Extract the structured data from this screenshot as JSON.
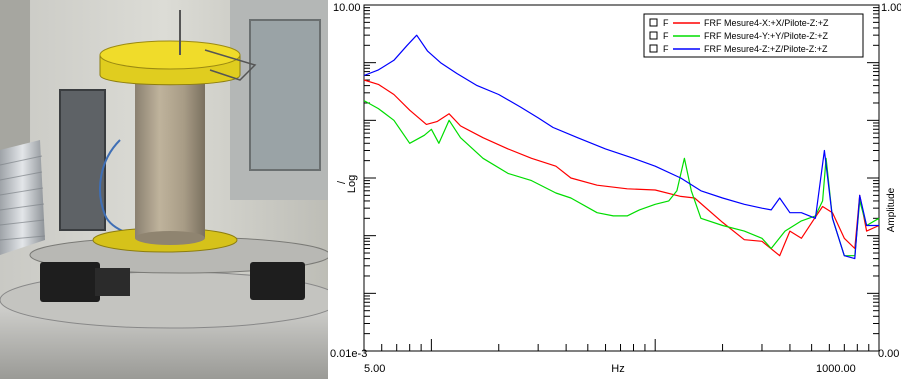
{
  "photo": {
    "scene": "yellow-capped cylindrical specimen mounted on aluminium shaker table"
  },
  "chart_data": {
    "type": "line",
    "title": "",
    "xlabel": "Hz",
    "ylabel": "Log",
    "ylabel_prefix": "/",
    "ylabel_right": "Amplitude",
    "x_scale": "log",
    "y_scale": "log",
    "xlim": [
      5,
      1000
    ],
    "ylim": [
      1e-05,
      10
    ],
    "x_tick_labels": [
      "5.00",
      "1000.00"
    ],
    "y_tick_labels_left": [
      "10.00",
      "0.01e-3"
    ],
    "y_tick_labels_right": [
      "1.00",
      "0.00"
    ],
    "grid": false,
    "legend_position": "top-right",
    "legend_box_label": "F",
    "series": [
      {
        "name": "FRF Mesure4-X:+X/Pilote-Z:+Z",
        "color": "#ff0000",
        "points": [
          [
            5,
            0.5
          ],
          [
            5.8,
            0.42
          ],
          [
            6.8,
            0.28
          ],
          [
            8,
            0.15
          ],
          [
            9.5,
            0.085
          ],
          [
            10.6,
            0.095
          ],
          [
            12,
            0.13
          ],
          [
            13.5,
            0.08
          ],
          [
            17,
            0.05
          ],
          [
            22,
            0.032
          ],
          [
            28,
            0.022
          ],
          [
            36,
            0.016
          ],
          [
            42,
            0.01
          ],
          [
            55,
            0.0075
          ],
          [
            75,
            0.0065
          ],
          [
            100,
            0.0062
          ],
          [
            130,
            0.0048
          ],
          [
            150,
            0.0045
          ],
          [
            200,
            0.0017
          ],
          [
            250,
            0.00085
          ],
          [
            300,
            0.0008
          ],
          [
            360,
            0.00045
          ],
          [
            400,
            0.0012
          ],
          [
            450,
            0.0009
          ],
          [
            520,
            0.0021
          ],
          [
            560,
            0.0032
          ],
          [
            620,
            0.0025
          ],
          [
            700,
            0.0009
          ],
          [
            780,
            0.0006
          ],
          [
            820,
            0.005
          ],
          [
            880,
            0.0012
          ],
          [
            1000,
            0.0015
          ]
        ]
      },
      {
        "name": "FRF Mesure4-Y:+Y/Pilote-Z:+Z",
        "color": "#00dd00",
        "points": [
          [
            5,
            0.22
          ],
          [
            5.8,
            0.16
          ],
          [
            6.8,
            0.1
          ],
          [
            8,
            0.04
          ],
          [
            9.3,
            0.055
          ],
          [
            10,
            0.07
          ],
          [
            10.8,
            0.04
          ],
          [
            12,
            0.1
          ],
          [
            13.5,
            0.05
          ],
          [
            17,
            0.022
          ],
          [
            22,
            0.012
          ],
          [
            28,
            0.009
          ],
          [
            36,
            0.0055
          ],
          [
            42,
            0.0045
          ],
          [
            55,
            0.0025
          ],
          [
            65,
            0.0022
          ],
          [
            75,
            0.0022
          ],
          [
            85,
            0.0028
          ],
          [
            100,
            0.0035
          ],
          [
            115,
            0.004
          ],
          [
            125,
            0.006
          ],
          [
            135,
            0.022
          ],
          [
            145,
            0.006
          ],
          [
            160,
            0.002
          ],
          [
            200,
            0.0015
          ],
          [
            250,
            0.0012
          ],
          [
            300,
            0.0009
          ],
          [
            330,
            0.0006
          ],
          [
            380,
            0.0012
          ],
          [
            450,
            0.0018
          ],
          [
            520,
            0.0022
          ],
          [
            560,
            0.004
          ],
          [
            580,
            0.022
          ],
          [
            620,
            0.002
          ],
          [
            700,
            0.00045
          ],
          [
            780,
            0.00045
          ],
          [
            820,
            0.004
          ],
          [
            880,
            0.0015
          ],
          [
            1000,
            0.002
          ]
        ]
      },
      {
        "name": "FRF Mesure4-Z:+Z/Pilote-Z:+Z",
        "color": "#0000ff",
        "points": [
          [
            5,
            0.6
          ],
          [
            5.8,
            0.75
          ],
          [
            6.8,
            1.1
          ],
          [
            7.8,
            2.0
          ],
          [
            8.6,
            3.0
          ],
          [
            9.6,
            1.6
          ],
          [
            11,
            1.0
          ],
          [
            13,
            0.65
          ],
          [
            16,
            0.4
          ],
          [
            20,
            0.28
          ],
          [
            25,
            0.17
          ],
          [
            30,
            0.11
          ],
          [
            35,
            0.075
          ],
          [
            45,
            0.05
          ],
          [
            60,
            0.032
          ],
          [
            80,
            0.022
          ],
          [
            100,
            0.016
          ],
          [
            130,
            0.01
          ],
          [
            160,
            0.006
          ],
          [
            200,
            0.0045
          ],
          [
            250,
            0.0035
          ],
          [
            300,
            0.003
          ],
          [
            330,
            0.0028
          ],
          [
            360,
            0.0045
          ],
          [
            400,
            0.0025
          ],
          [
            450,
            0.0025
          ],
          [
            520,
            0.002
          ],
          [
            570,
            0.03
          ],
          [
            620,
            0.002
          ],
          [
            700,
            0.00045
          ],
          [
            780,
            0.0004
          ],
          [
            820,
            0.005
          ],
          [
            880,
            0.0015
          ],
          [
            1000,
            0.0015
          ]
        ]
      }
    ]
  }
}
